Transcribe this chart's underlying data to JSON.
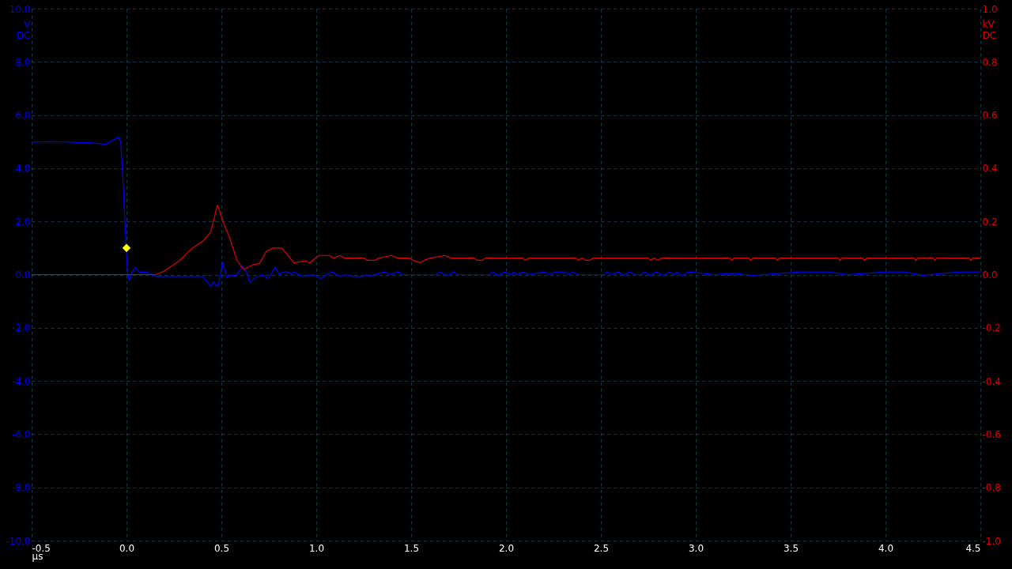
{
  "chart_data": {
    "type": "line",
    "xlabel": "µs",
    "ylabel": "V DC",
    "y2label": "kV DC",
    "xlim": [
      -0.5,
      4.5
    ],
    "xticks": [
      {
        "value": -0.5,
        "label": "-0.5"
      },
      {
        "value": 0,
        "label": "0.0"
      },
      {
        "value": 0.5,
        "label": "0.5"
      },
      {
        "value": 1,
        "label": "1.0"
      },
      {
        "value": 1.5,
        "label": "1.5"
      },
      {
        "value": 2,
        "label": "2.0"
      },
      {
        "value": 2.5,
        "label": "2.5"
      },
      {
        "value": 3,
        "label": "3.0"
      },
      {
        "value": 3.5,
        "label": "3.5"
      },
      {
        "value": 4,
        "label": "4.0"
      },
      {
        "value": 4.5,
        "label": "4.5"
      }
    ],
    "ylim": [
      -10,
      10
    ],
    "yticks": [
      {
        "value": -10,
        "label": "-10.0"
      },
      {
        "value": -8,
        "label": "-8.0"
      },
      {
        "value": -6,
        "label": "-6.0"
      },
      {
        "value": -4,
        "label": "-4.0"
      },
      {
        "value": -2,
        "label": "-2.0"
      },
      {
        "value": 0,
        "label": "0.0"
      },
      {
        "value": 2,
        "label": "2.0"
      },
      {
        "value": 4,
        "label": "4.0"
      },
      {
        "value": 6,
        "label": "6.0"
      },
      {
        "value": 8,
        "label": "8.0"
      },
      {
        "value": 10,
        "label": "10.0"
      }
    ],
    "y2lim": [
      -1,
      1
    ],
    "y2ticks": [
      {
        "value": -1,
        "label": "-1.0"
      },
      {
        "value": -0.8,
        "label": "-0.8"
      },
      {
        "value": -0.6,
        "label": "-0.6"
      },
      {
        "value": -0.4,
        "label": "-0.4"
      },
      {
        "value": -0.2,
        "label": "-0.2"
      },
      {
        "value": 0,
        "label": "0.0"
      },
      {
        "value": 0.2,
        "label": "0.2"
      },
      {
        "value": 0.4,
        "label": "0.4"
      },
      {
        "value": 0.6,
        "label": "0.6"
      },
      {
        "value": 0.8,
        "label": "0.8"
      },
      {
        "value": 1,
        "label": "1.0"
      }
    ],
    "grid": true,
    "marker": "none",
    "line_style": "solid",
    "series": [
      {
        "color": "#0000ff",
        "x": [
          -0.5,
          -0.4,
          -0.3,
          -0.18,
          -0.11,
          -0.042,
          -0.03,
          -0.021,
          -0.011,
          -0.003,
          0.005,
          0.014,
          0.028,
          0.046,
          0.07,
          0.11,
          0.132,
          0.16,
          0.403,
          0.444,
          0.46,
          0.472,
          0.483,
          0.507,
          0.528,
          0.555,
          0.576,
          0.611,
          0.632,
          0.65,
          0.688,
          0.722,
          0.747,
          0.783,
          0.805,
          0.838,
          0.87,
          0.88,
          0.93,
          0.986,
          1.025,
          1.06,
          1.083,
          1.125,
          1.153,
          1.194,
          1.243,
          1.26,
          1.285,
          1.305,
          1.36,
          1.39,
          1.43,
          1.458,
          1.632,
          1.65,
          1.69,
          1.725,
          1.74,
          1.91,
          1.93,
          1.96,
          1.99,
          2.03,
          2.04,
          2.06,
          2.09,
          2.12,
          2.2,
          2.23,
          2.26,
          2.31,
          2.33,
          2.35,
          2.38,
          2.52,
          2.53,
          2.56,
          2.59,
          2.62,
          2.65,
          2.68,
          2.71,
          2.73,
          2.76,
          2.79,
          2.83,
          2.86,
          2.89,
          2.9,
          2.93,
          2.96,
          3.1,
          3.2,
          3.3,
          3.45,
          3.55,
          3.7,
          3.8,
          3.9,
          4.0,
          4.1,
          4.2,
          4.3,
          4.4,
          4.5
        ],
        "values": [
          4.98,
          5.0,
          4.98,
          4.95,
          4.9,
          5.18,
          4.97,
          3.89,
          2.4,
          1.21,
          0.12,
          -0.22,
          0.07,
          0.27,
          0.09,
          0.09,
          0,
          -0.07,
          -0.07,
          -0.44,
          -0.27,
          -0.42,
          -0.43,
          0.47,
          -0.1,
          -0.02,
          -0.07,
          0.32,
          0.1,
          -0.29,
          -0.07,
          -0.02,
          -0.15,
          0.27,
          0.02,
          0.12,
          0.02,
          0.1,
          -0.07,
          0,
          -0.15,
          0.02,
          0.1,
          -0.07,
          0,
          -0.07,
          -0.07,
          0,
          -0.07,
          0,
          0.1,
          0,
          0.1,
          0,
          0,
          0.1,
          -0.03,
          0.1,
          0,
          0,
          0.1,
          -0.03,
          0.1,
          0,
          0.1,
          0,
          0.1,
          0,
          0.1,
          0,
          0.1,
          0.1,
          0,
          0.1,
          0,
          0,
          0.1,
          0,
          0.1,
          -0.03,
          0.1,
          0,
          0,
          0.1,
          -0.03,
          0.1,
          -0.03,
          0.1,
          0,
          0.1,
          -0.03,
          0.1,
          0,
          0.05,
          -0.03,
          0.05,
          0.1,
          0.1,
          0,
          0.05,
          0.1,
          0.1,
          -0.03,
          0.05,
          0.1,
          0.1
        ]
      },
      {
        "color": "#e00000",
        "axis": "y2",
        "x": [
          -0.5,
          0.153,
          0.195,
          0.278,
          0.347,
          0.403,
          0.444,
          0.479,
          0.514,
          0.542,
          0.583,
          0.618,
          0.667,
          0.701,
          0.736,
          0.771,
          0.819,
          0.882,
          0.944,
          0.965,
          1.014,
          1.035,
          1.07,
          1.09,
          1.125,
          1.15,
          1.25,
          1.27,
          1.31,
          1.33,
          1.396,
          1.43,
          1.493,
          1.51,
          1.549,
          1.57,
          1.6,
          1.68,
          1.71,
          1.833,
          1.847,
          1.875,
          1.89,
          2.09,
          2.1,
          2.12,
          2.368,
          2.38,
          2.4,
          2.42,
          2.44,
          2.46,
          2.75,
          2.76,
          2.78,
          2.8,
          2.82,
          3.18,
          3.19,
          3.2,
          3.28,
          3.29,
          3.3,
          3.42,
          3.43,
          3.44,
          3.75,
          3.76,
          3.77,
          3.88,
          3.89,
          3.9,
          4.15,
          4.16,
          4.17,
          4.25,
          4.26,
          4.27,
          4.44,
          4.45,
          4.46,
          4.5
        ],
        "values": [
          0,
          0,
          0.012,
          0.052,
          0.1,
          0.126,
          0.161,
          0.262,
          0.19,
          0.141,
          0.052,
          0.02,
          0.037,
          0.042,
          0.087,
          0.1,
          0.1,
          0.044,
          0.052,
          0.044,
          0.072,
          0.072,
          0.072,
          0.062,
          0.072,
          0.062,
          0.062,
          0.054,
          0.054,
          0.062,
          0.072,
          0.062,
          0.062,
          0.054,
          0.045,
          0.054,
          0.062,
          0.072,
          0.062,
          0.062,
          0.054,
          0.054,
          0.062,
          0.062,
          0.054,
          0.062,
          0.062,
          0.054,
          0.062,
          0.054,
          0.054,
          0.062,
          0.062,
          0.054,
          0.062,
          0.054,
          0.062,
          0.062,
          0.054,
          0.062,
          0.062,
          0.054,
          0.062,
          0.062,
          0.054,
          0.062,
          0.062,
          0.054,
          0.062,
          0.062,
          0.054,
          0.062,
          0.062,
          0.054,
          0.062,
          0.062,
          0.054,
          0.062,
          0.062,
          0.054,
          0.062,
          0.062
        ]
      },
      {
        "type": "scatter",
        "marker": "diamond",
        "color": "#ffff00",
        "x": [
          0.0
        ],
        "values": [
          1.0
        ]
      }
    ]
  }
}
